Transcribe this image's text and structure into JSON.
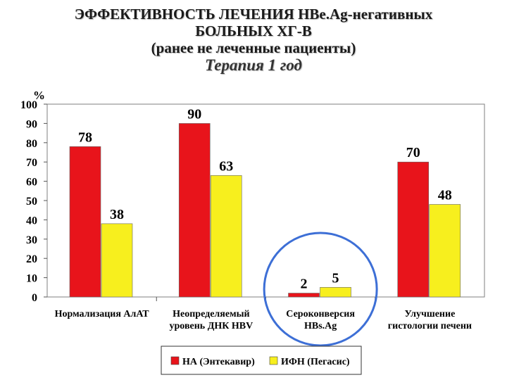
{
  "chart_data": {
    "type": "bar",
    "title_lines": [
      "ЭФФЕКТИВНОСТЬ ЛЕЧЕНИЯ HBe.Ag-негативных",
      "БОЛЬНЫХ ХГ-В",
      "(ранее не леченные пациенты)"
    ],
    "subtitle": "Терапия 1 год",
    "ylabel": "%",
    "ylim": [
      0,
      100
    ],
    "yticks": [
      0,
      10,
      20,
      30,
      40,
      50,
      60,
      70,
      80,
      90,
      100
    ],
    "categories": [
      [
        "Нормализация АлАТ"
      ],
      [
        "Неопределяемый",
        "уровень ДНК HBV"
      ],
      [
        "Сероконверсия",
        "HBs.Ag"
      ],
      [
        "Улучшение",
        "гистологии печени"
      ]
    ],
    "series": [
      {
        "name": "НА (Энтекавир)",
        "color": "#e8141b",
        "values": [
          78,
          90,
          2,
          70
        ]
      },
      {
        "name": "ИФН (Пегасис)",
        "color": "#f7ef1e",
        "values": [
          38,
          63,
          5,
          48
        ]
      }
    ],
    "highlight_category": 2,
    "highlight_color": "#3d6fd6",
    "legend_position": "bottom"
  }
}
